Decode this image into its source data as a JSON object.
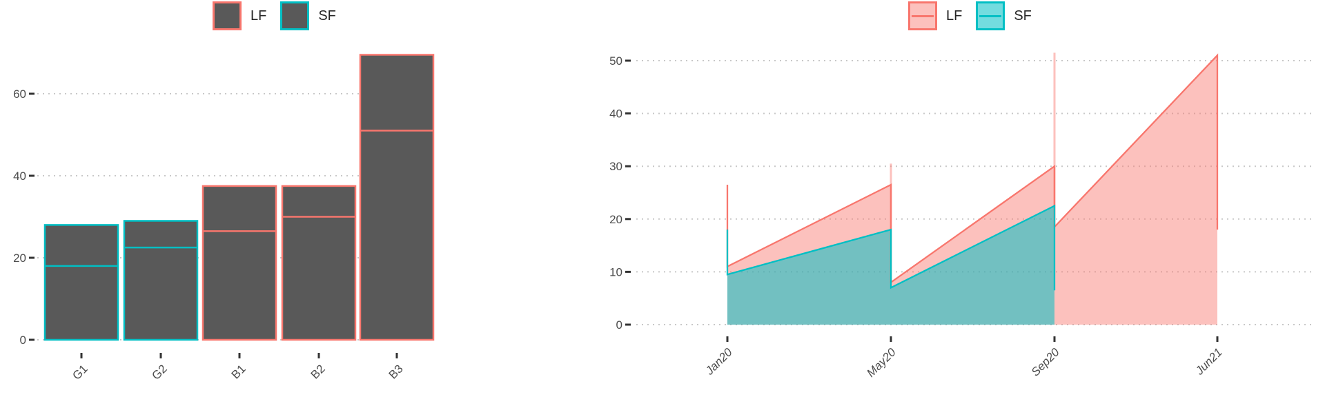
{
  "colors": {
    "lf": "#F8766D",
    "sf": "#00BFC4",
    "lf_fill": "rgba(248,118,109,0.45)",
    "sf_fill": "rgba(0,191,196,0.55)",
    "bar_fill": "#595959",
    "grid": "#C8C8C8",
    "tick_mark": "#333333",
    "axis_text": "#4D4D4D",
    "background": "#FFFFFF"
  },
  "chart_data": [
    {
      "type": "bar",
      "title": "",
      "xlabel": "",
      "ylabel": "",
      "grid": "dotted-horizontal",
      "legend_position": "top",
      "legend_items": [
        {
          "label": "LF",
          "color": "lf"
        },
        {
          "label": "SF",
          "color": "sf"
        }
      ],
      "categories": [
        "G1",
        "G2",
        "B1",
        "B2",
        "B3"
      ],
      "yticks": [
        0,
        20,
        40,
        60
      ],
      "ylim": [
        0,
        72
      ],
      "bars": [
        {
          "label": "G1",
          "color": "sf",
          "series": "SF",
          "total": 28,
          "divider": 18
        },
        {
          "label": "G2",
          "color": "sf",
          "series": "SF",
          "total": 29,
          "divider": 22.5
        },
        {
          "label": "B1",
          "color": "lf",
          "series": "LF",
          "total": 37.5,
          "divider": 26.5
        },
        {
          "label": "B2",
          "color": "lf",
          "series": "LF",
          "total": 37.5,
          "divider": 30
        },
        {
          "label": "B3",
          "color": "lf",
          "series": "LF",
          "total": 69.5,
          "divider": 51
        }
      ]
    },
    {
      "type": "area",
      "title": "",
      "xlabel": "",
      "ylabel": "",
      "grid": "dotted-horizontal",
      "legend_position": "top",
      "legend_items": [
        {
          "label": "LF",
          "color": "lf"
        },
        {
          "label": "SF",
          "color": "sf"
        }
      ],
      "x_categories": [
        "Jan20",
        "May20",
        "Sep20",
        "Jun21"
      ],
      "yticks": [
        0,
        10,
        20,
        30,
        40,
        50
      ],
      "ylim": [
        0,
        52
      ],
      "series": [
        {
          "name": "LF",
          "color": "lf",
          "stroke_points": [
            [
              0,
              26.5
            ],
            [
              0,
              11
            ],
            [
              1,
              26.5
            ],
            [
              1,
              8
            ],
            [
              2,
              30
            ],
            [
              2,
              18.5
            ],
            [
              3,
              51
            ],
            [
              3,
              18
            ]
          ],
          "fill_points": [
            [
              0,
              0
            ],
            [
              0,
              26.5
            ],
            [
              0,
              11
            ],
            [
              1,
              26.5
            ],
            [
              1,
              30.5
            ],
            [
              1,
              8
            ],
            [
              2,
              30
            ],
            [
              2,
              51.5
            ],
            [
              2,
              18.5
            ],
            [
              3,
              51
            ],
            [
              3,
              0
            ]
          ],
          "pale_spikes": [
            {
              "x": 1,
              "from": 8,
              "to": 30.5
            },
            {
              "x": 2,
              "from": 18.5,
              "to": 51.5
            }
          ]
        },
        {
          "name": "SF",
          "color": "sf",
          "stroke_points": [
            [
              0,
              18
            ],
            [
              0,
              9.5
            ],
            [
              1,
              18
            ],
            [
              1,
              7
            ],
            [
              2,
              22.5
            ],
            [
              2,
              6.5
            ]
          ],
          "fill_points": [
            [
              0,
              0
            ],
            [
              0,
              18
            ],
            [
              0,
              9.5
            ],
            [
              1,
              18
            ],
            [
              1,
              7
            ],
            [
              2,
              22.5
            ],
            [
              2,
              6.5
            ],
            [
              2,
              0
            ]
          ],
          "pale_spikes": []
        }
      ]
    }
  ]
}
